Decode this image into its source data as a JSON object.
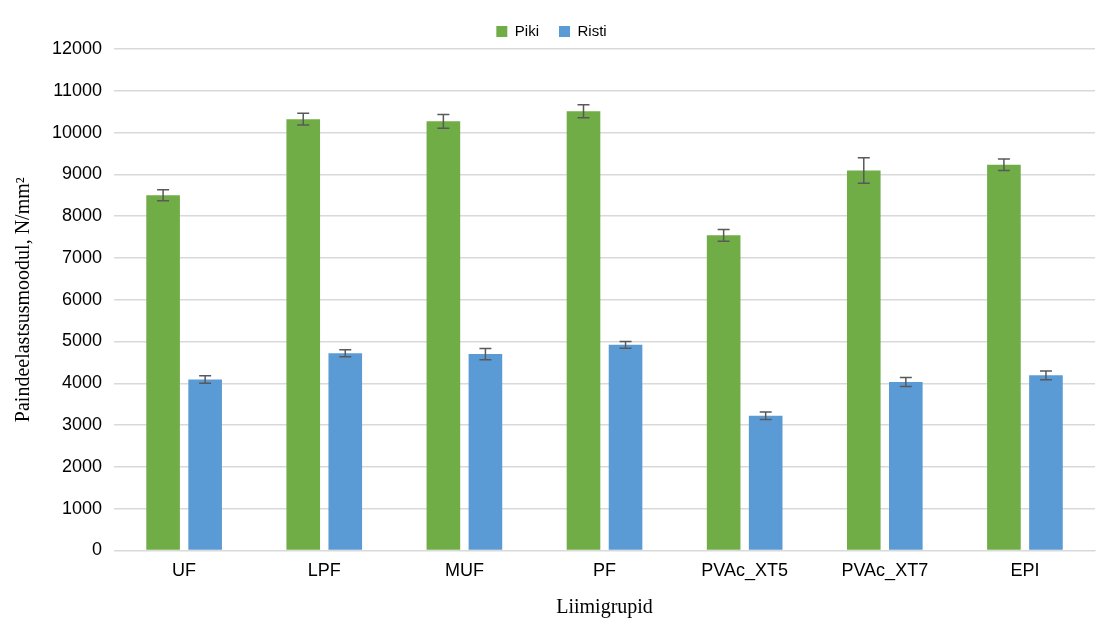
{
  "chart_data": {
    "type": "bar",
    "xlabel": "Liimigrupid",
    "ylabel": "Paindeelastsusmoodul, N/mm²",
    "categories": [
      "UF",
      "LPF",
      "MUF",
      "PF",
      "PVAc_XT5",
      "PVAc_XT7",
      "EPI"
    ],
    "series": [
      {
        "name": "Piki",
        "color": "#70ad47",
        "values": [
          8500,
          10320,
          10270,
          10510,
          7540,
          9090,
          9230
        ],
        "errors": [
          130,
          140,
          165,
          155,
          140,
          305,
          140
        ]
      },
      {
        "name": "Risti",
        "color": "#5b9bd5",
        "values": [
          4090,
          4720,
          4700,
          4920,
          3220,
          4030,
          4190
        ],
        "errors": [
          90,
          85,
          135,
          80,
          90,
          110,
          105
        ]
      }
    ],
    "ylim": [
      0,
      12000
    ],
    "yticks": [
      0,
      1000,
      2000,
      3000,
      4000,
      5000,
      6000,
      7000,
      8000,
      9000,
      10000,
      11000,
      12000
    ],
    "grid": "y",
    "legend": "top"
  }
}
